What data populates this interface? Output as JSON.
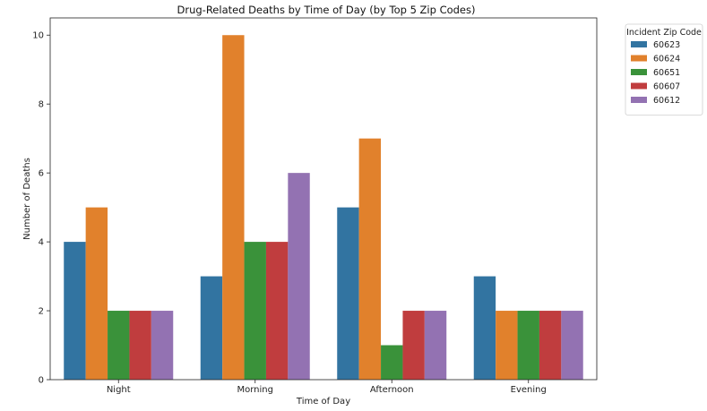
{
  "chart_data": {
    "type": "bar",
    "title": "Drug-Related Deaths by Time of Day (by Top 5 Zip Codes)",
    "xlabel": "Time of Day",
    "ylabel": "Number of Deaths",
    "categories": [
      "Night",
      "Morning",
      "Afternoon",
      "Evening"
    ],
    "ylim": [
      0,
      10.5
    ],
    "yticks": [
      0,
      2,
      4,
      6,
      8,
      10
    ],
    "grid": false,
    "legend": {
      "title": "Incident Zip Code",
      "placement": "outside-top-right"
    },
    "series": [
      {
        "name": "60623",
        "color": "#3274a1",
        "values": [
          4,
          3,
          5,
          3
        ]
      },
      {
        "name": "60624",
        "color": "#e1812c",
        "values": [
          5,
          10,
          7,
          2
        ]
      },
      {
        "name": "60651",
        "color": "#3a923a",
        "values": [
          2,
          4,
          1,
          2
        ]
      },
      {
        "name": "60607",
        "color": "#c03d3e",
        "values": [
          2,
          4,
          2,
          2
        ]
      },
      {
        "name": "60612",
        "color": "#9372b2",
        "values": [
          2,
          6,
          2,
          2
        ]
      }
    ]
  }
}
